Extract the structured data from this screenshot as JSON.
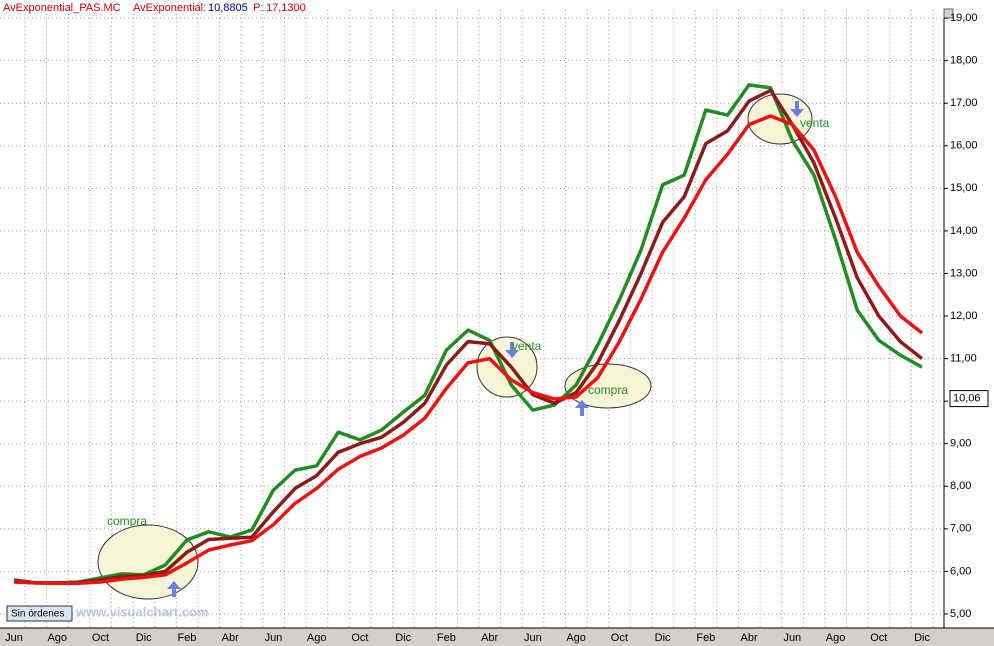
{
  "header": {
    "symbol": "AvExponential_PAS.MC",
    "indicator": "AvExponential:",
    "indicator_value": "10,8805",
    "price_label": "P:",
    "price_value": "17,1300"
  },
  "watermark": "www.visualchart.com",
  "orders_box": "Sin órdenes",
  "chart_data": {
    "type": "line",
    "categories": [
      "Jun",
      null,
      "Ago",
      null,
      "Oct",
      null,
      "Dic",
      null,
      "Feb",
      null,
      "Abr",
      null,
      "Jun",
      null,
      "Ago",
      null,
      "Oct",
      null,
      "Dic",
      null,
      "Feb",
      null,
      "Abr",
      null,
      "Jun",
      null,
      "Ago",
      null,
      "Oct",
      null,
      "Dic",
      null,
      "Feb",
      null,
      "Abr",
      null,
      "Jun",
      null,
      "Ago",
      null,
      "Oct",
      null,
      "Dic"
    ],
    "series": [
      {
        "color": "#228b22",
        "values": [
          5.8,
          5.73,
          5.73,
          5.75,
          5.85,
          5.94,
          5.92,
          6.15,
          6.74,
          6.93,
          6.81,
          6.97,
          7.91,
          8.38,
          8.48,
          9.27,
          9.09,
          9.32,
          9.74,
          10.14,
          11.2,
          11.67,
          11.43,
          10.38,
          9.79,
          9.91,
          10.38,
          11.32,
          12.38,
          13.55,
          15.08,
          15.31,
          16.84,
          16.72,
          17.43,
          17.36,
          16.13,
          15.31,
          13.79,
          12.14,
          11.43,
          11.08,
          10.8
        ]
      },
      {
        "color": "#8b1a1a",
        "values": [
          5.78,
          5.73,
          5.73,
          5.74,
          5.8,
          5.88,
          5.9,
          6.0,
          6.45,
          6.75,
          6.78,
          6.8,
          7.4,
          7.95,
          8.25,
          8.8,
          9.0,
          9.15,
          9.5,
          9.95,
          10.85,
          11.4,
          11.35,
          10.8,
          10.15,
          9.95,
          10.2,
          10.9,
          11.9,
          13.0,
          14.2,
          14.8,
          16.05,
          16.35,
          17.05,
          17.3,
          16.5,
          15.6,
          14.3,
          12.9,
          12.0,
          11.4,
          11.0
        ]
      },
      {
        "color": "#ee1111",
        "values": [
          5.75,
          5.73,
          5.72,
          5.72,
          5.75,
          5.82,
          5.86,
          5.92,
          6.2,
          6.5,
          6.62,
          6.72,
          7.1,
          7.6,
          7.95,
          8.4,
          8.7,
          8.9,
          9.2,
          9.6,
          10.3,
          10.9,
          11.0,
          10.5,
          10.2,
          10.05,
          10.1,
          10.55,
          11.4,
          12.4,
          13.5,
          14.3,
          15.2,
          15.8,
          16.5,
          16.7,
          16.5,
          15.9,
          14.8,
          13.5,
          12.7,
          12.0,
          11.6
        ]
      }
    ],
    "ylim": [
      4.67,
      19.19
    ],
    "yticks": [
      {
        "value": 5,
        "label": "5,00"
      },
      {
        "value": 6,
        "label": "6,00"
      },
      {
        "value": 7,
        "label": "7,00"
      },
      {
        "value": 8,
        "label": "8,00"
      },
      {
        "value": 9,
        "label": "9,00"
      },
      {
        "value": 10,
        "label": "10,00"
      },
      {
        "value": 11,
        "label": "11,00"
      },
      {
        "value": 12,
        "label": "12,00"
      },
      {
        "value": 13,
        "label": "13,00"
      },
      {
        "value": 14,
        "label": "14,00"
      },
      {
        "value": 15,
        "label": "15,00"
      },
      {
        "value": 16,
        "label": "16,00"
      },
      {
        "value": 17,
        "label": "17,00"
      },
      {
        "value": 18,
        "label": "18,00"
      },
      {
        "value": 19,
        "label": "19,00"
      }
    ],
    "last_price": {
      "value": 10.06,
      "label": "10,06"
    },
    "annotations": [
      "compra",
      "venta",
      "compra",
      "venta"
    ],
    "grid": true
  }
}
